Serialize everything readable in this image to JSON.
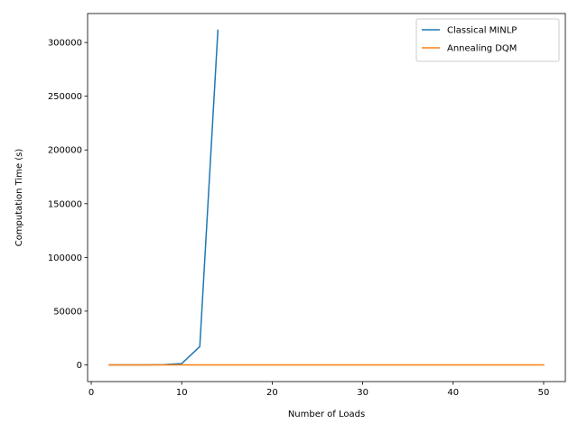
{
  "chart_data": {
    "type": "line",
    "xlabel": "Number of Loads",
    "ylabel": "Computation Time (s)",
    "xlim": [
      -0.4,
      52.4
    ],
    "ylim": [
      -15570,
      326973
    ],
    "xticks": [
      0,
      10,
      20,
      30,
      40,
      50
    ],
    "yticks": [
      0,
      50000,
      100000,
      150000,
      200000,
      250000,
      300000
    ],
    "grid": false,
    "legend_position": "top-right",
    "series": [
      {
        "name": "Classical MINLP",
        "color": "#1f77b4",
        "x": [
          2,
          4,
          6,
          8,
          10,
          12,
          14
        ],
        "y": [
          0,
          2,
          15,
          120,
          1200,
          17000,
          311400
        ]
      },
      {
        "name": "Annealing DQM",
        "color": "#ff7f0e",
        "x": [
          2,
          4,
          6,
          8,
          10,
          12,
          14,
          16,
          18,
          20,
          22,
          24,
          26,
          28,
          30,
          32,
          34,
          36,
          38,
          40,
          42,
          44,
          46,
          48,
          50
        ],
        "y": [
          5,
          5,
          5,
          5,
          5,
          5,
          5,
          5,
          5,
          5,
          5,
          5,
          5,
          5,
          5,
          5,
          5,
          5,
          5,
          5,
          5,
          5,
          5,
          5,
          5
        ]
      }
    ]
  }
}
